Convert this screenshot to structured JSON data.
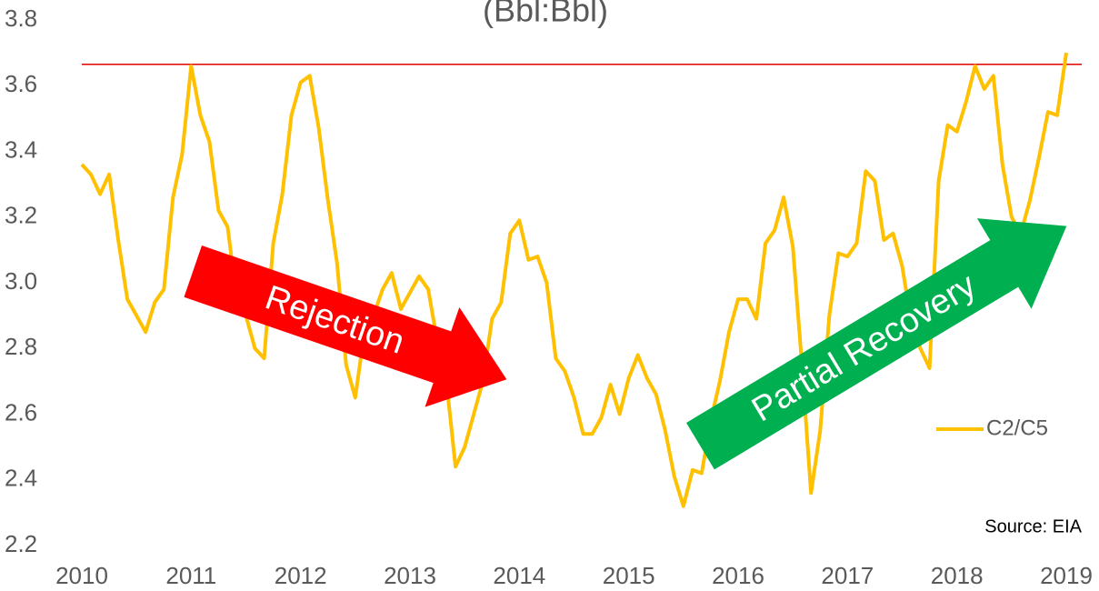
{
  "chart_data": {
    "type": "line",
    "title": "(Bbl:Bbl)",
    "categories": [
      "2010",
      null,
      null,
      null,
      null,
      null,
      null,
      null,
      null,
      null,
      null,
      null,
      "2011",
      null,
      null,
      null,
      null,
      null,
      null,
      null,
      null,
      null,
      null,
      null,
      "2012",
      null,
      null,
      null,
      null,
      null,
      null,
      null,
      null,
      null,
      null,
      null,
      "2013",
      null,
      null,
      null,
      null,
      null,
      null,
      null,
      null,
      null,
      null,
      null,
      "2014",
      null,
      null,
      null,
      null,
      null,
      null,
      null,
      null,
      null,
      null,
      null,
      "2015",
      null,
      null,
      null,
      null,
      null,
      null,
      null,
      null,
      null,
      null,
      null,
      "2016",
      null,
      null,
      null,
      null,
      null,
      null,
      null,
      null,
      null,
      null,
      null,
      "2017",
      null,
      null,
      null,
      null,
      null,
      null,
      null,
      null,
      null,
      null,
      null,
      "2018",
      null,
      null,
      null,
      null,
      null,
      null,
      null,
      null,
      null,
      null,
      null,
      "2019"
    ],
    "series": [
      {
        "name": "C2/C5",
        "color": "#ffc000",
        "values": [
          3.36,
          3.33,
          3.27,
          3.33,
          3.13,
          2.95,
          2.9,
          2.85,
          2.94,
          2.98,
          3.26,
          3.39,
          3.66,
          3.51,
          3.43,
          3.22,
          3.17,
          2.95,
          2.9,
          2.8,
          2.77,
          3.12,
          3.27,
          3.51,
          3.61,
          3.63,
          3.47,
          3.25,
          3.06,
          2.75,
          2.65,
          2.85,
          2.9,
          2.98,
          3.03,
          2.92,
          2.97,
          3.02,
          2.98,
          2.82,
          2.7,
          2.44,
          2.5,
          2.6,
          2.7,
          2.89,
          2.94,
          3.15,
          3.19,
          3.07,
          3.08,
          3.0,
          2.77,
          2.73,
          2.65,
          2.54,
          2.54,
          2.59,
          2.69,
          2.6,
          2.71,
          2.78,
          2.71,
          2.66,
          2.55,
          2.41,
          2.32,
          2.43,
          2.42,
          2.58,
          2.7,
          2.85,
          2.95,
          2.95,
          2.89,
          3.12,
          3.16,
          3.26,
          3.11,
          2.75,
          2.36,
          2.55,
          2.9,
          3.09,
          3.08,
          3.12,
          3.34,
          3.31,
          3.13,
          3.15,
          3.05,
          2.88,
          2.8,
          2.74,
          3.31,
          3.48,
          3.46,
          3.55,
          3.66,
          3.59,
          3.63,
          3.36,
          3.2,
          3.15,
          3.25,
          3.38,
          3.52,
          3.51,
          3.7
        ]
      }
    ],
    "ylim": [
      2.2,
      3.8
    ],
    "yticks": [
      2.2,
      2.4,
      2.6,
      2.8,
      {
        "value": 3,
        "label": "3.0"
      },
      3.2,
      3.4,
      3.6,
      3.8
    ],
    "reference_line": {
      "value": 3.665,
      "color": "#e00000"
    },
    "legend": "right",
    "annotations": [
      "Rejection",
      "Partial Recovery",
      "Source: EIA"
    ]
  }
}
